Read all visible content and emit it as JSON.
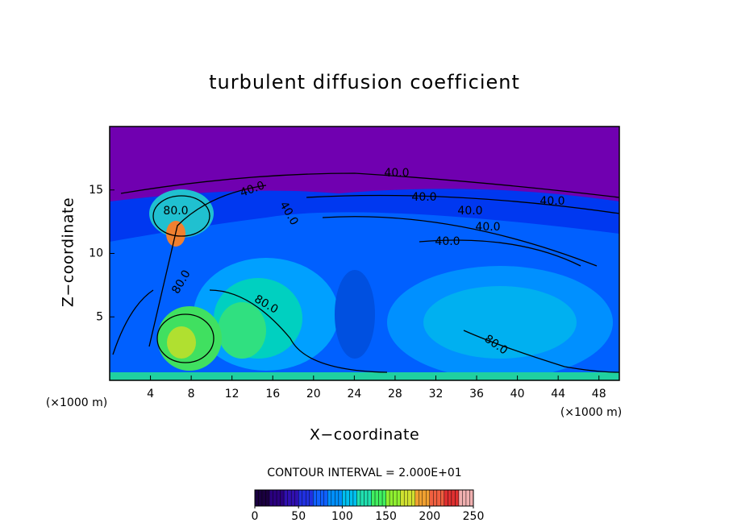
{
  "chart_data": {
    "type": "contour",
    "title": "turbulent diffusion coefficient",
    "x_label": "X−coordinate",
    "y_label": "Z−coordinate",
    "x_unit": "(×1000 m)",
    "y_unit": "(×1000 m)",
    "xlim": [
      0,
      50
    ],
    "ylim": [
      0,
      20
    ],
    "xticks": [
      4,
      8,
      12,
      16,
      20,
      24,
      28,
      32,
      36,
      40,
      44,
      48
    ],
    "yticks": [
      5,
      10,
      15
    ],
    "contour_interval": "CONTOUR INTERVAL =  2.000E+01",
    "contour_labels": [
      "40.0",
      "40.0",
      "40.0",
      "40.0",
      "40.0",
      "40.0",
      "40.0",
      "40.0",
      "80.0",
      "80.0",
      "80.0",
      "80.0"
    ],
    "colorbar": {
      "lim": [
        0,
        250
      ],
      "ticks": [
        0,
        50,
        100,
        150,
        200,
        250
      ],
      "colormap": [
        "#1a0040",
        "#2a0080",
        "#3010b0",
        "#2030e0",
        "#1060ff",
        "#0090ff",
        "#00c0f0",
        "#20e0b0",
        "#40f060",
        "#90f030",
        "#d0e030",
        "#f0a030",
        "#f06040",
        "#e03030",
        "#f0b0b0"
      ]
    }
  }
}
